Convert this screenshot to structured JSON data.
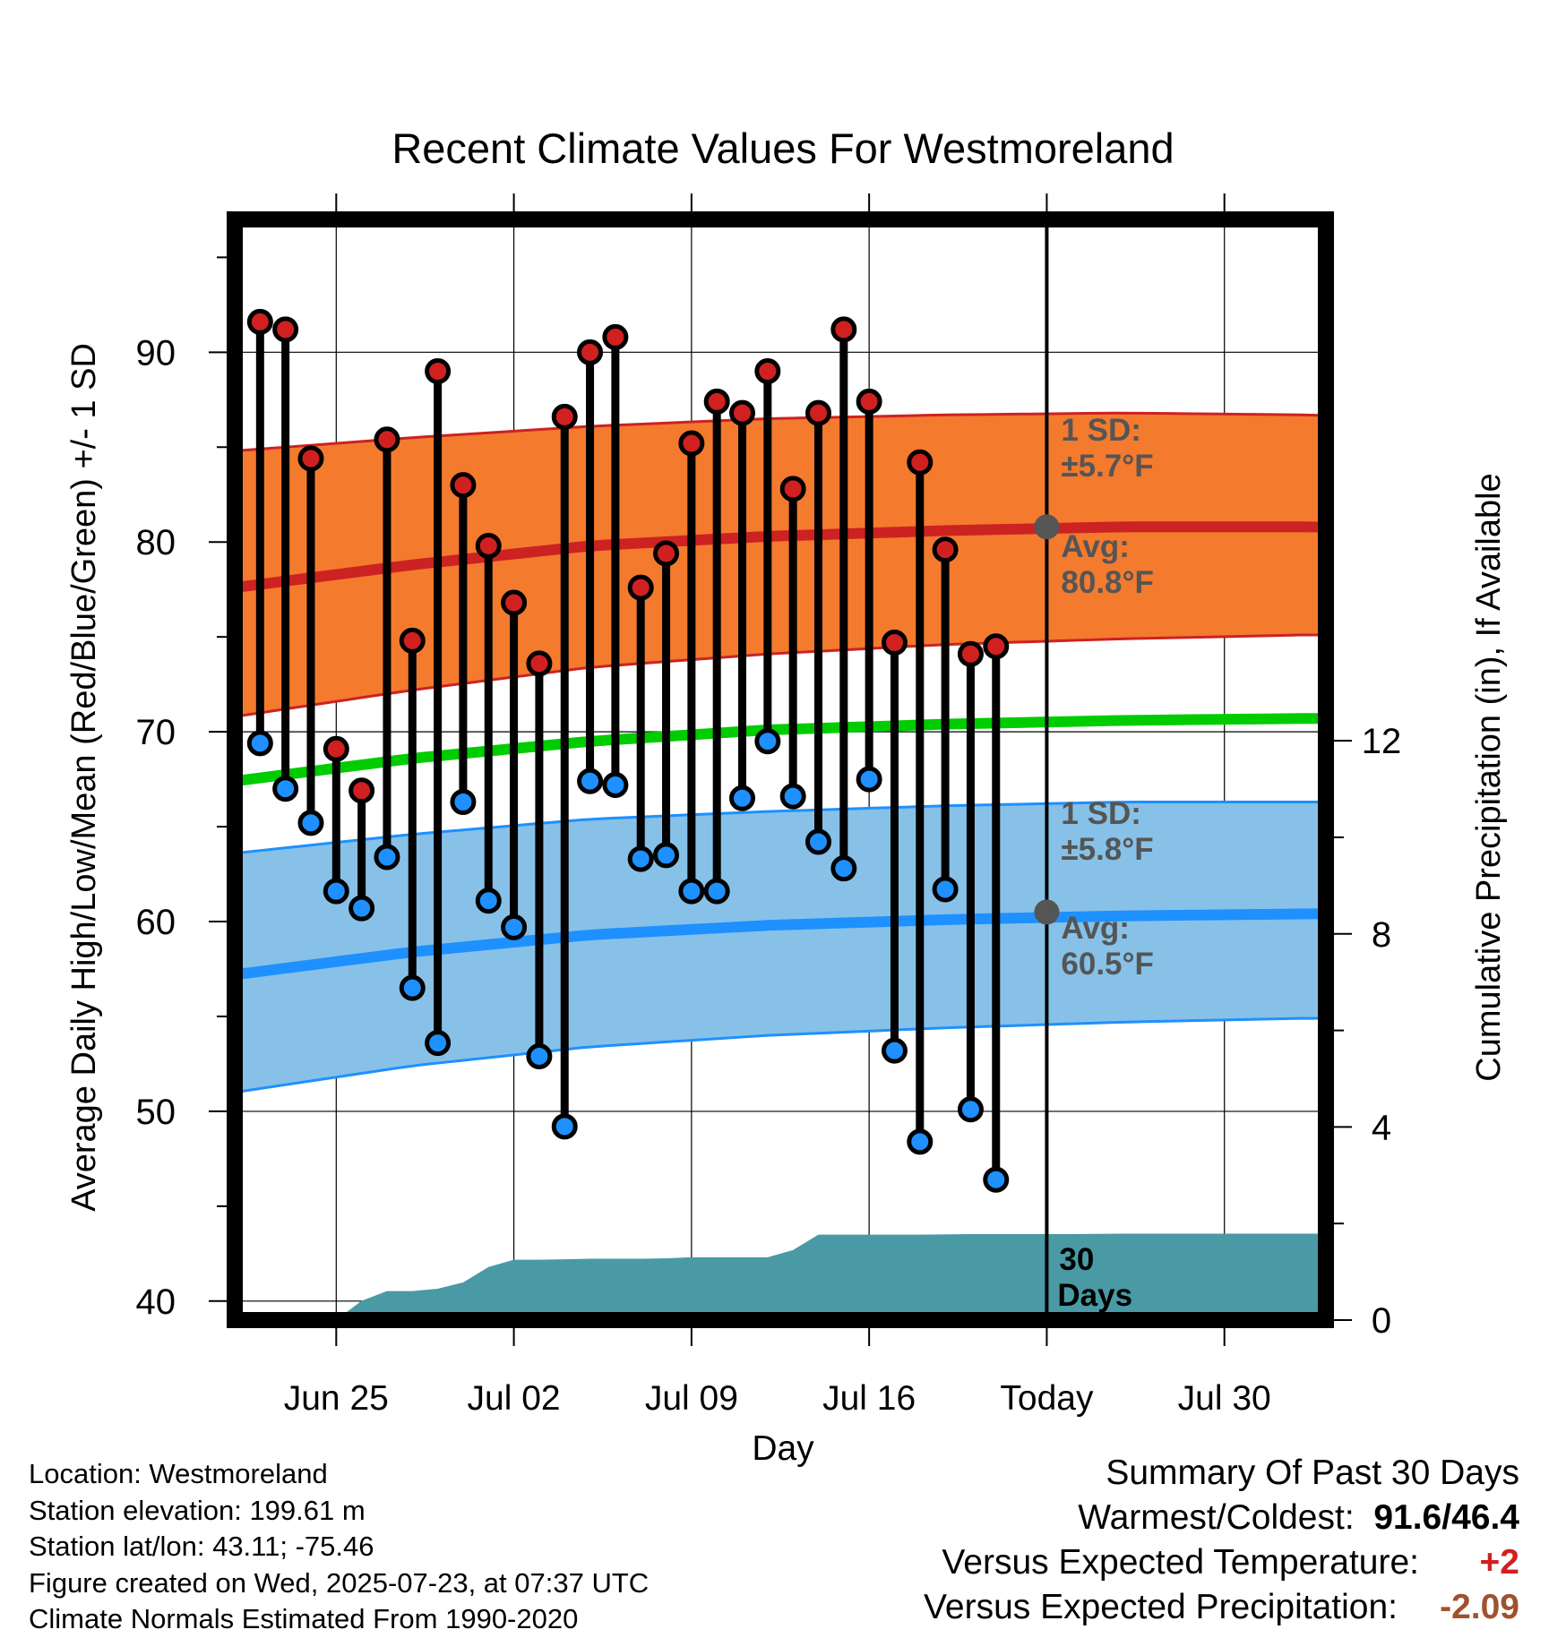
{
  "chart_data": {
    "type": "line",
    "title": "Recent Climate Values For Westmoreland",
    "xlabel": "Day",
    "ylabel": "Average Daily High/Low/Mean (Red/Blue/Green) +/- 1 SD",
    "y2label": "Cumulative Precipitation (in), If Available",
    "xlim": [
      "2025-06-21",
      "2025-08-03"
    ],
    "ylim": [
      39,
      97
    ],
    "y2lim": [
      0,
      22.8
    ],
    "x_ticks": [
      {
        "date": "2025-06-25",
        "label": "Jun 25"
      },
      {
        "date": "2025-07-02",
        "label": "Jul 02"
      },
      {
        "date": "2025-07-09",
        "label": "Jul 09"
      },
      {
        "date": "2025-07-16",
        "label": "Jul 16"
      },
      {
        "date": "2025-07-23",
        "label": "Today"
      },
      {
        "date": "2025-07-30",
        "label": "Jul 30"
      }
    ],
    "y_ticks": [
      40,
      50,
      60,
      70,
      80,
      90
    ],
    "y2_ticks": [
      0,
      4,
      8,
      12
    ],
    "grid": true,
    "today": "2025-07-23",
    "series": [
      {
        "name": "High",
        "color": "#d02020",
        "dates": [
          "2025-06-22",
          "2025-06-23",
          "2025-06-24",
          "2025-06-25",
          "2025-06-26",
          "2025-06-27",
          "2025-06-28",
          "2025-06-29",
          "2025-06-30",
          "2025-07-01",
          "2025-07-02",
          "2025-07-03",
          "2025-07-04",
          "2025-07-05",
          "2025-07-06",
          "2025-07-07",
          "2025-07-08",
          "2025-07-09",
          "2025-07-10",
          "2025-07-11",
          "2025-07-12",
          "2025-07-13",
          "2025-07-14",
          "2025-07-15",
          "2025-07-16",
          "2025-07-17",
          "2025-07-18",
          "2025-07-19",
          "2025-07-20",
          "2025-07-21",
          "2025-07-22"
        ],
        "values": [
          91.6,
          91.2,
          84.4,
          69.1,
          66.9,
          85.4,
          74.8,
          89.0,
          83.0,
          79.8,
          76.8,
          73.6,
          86.6,
          90.0,
          90.8,
          77.6,
          79.4,
          85.2,
          87.4,
          86.8,
          89.0,
          82.8,
          86.8,
          91.2,
          87.4,
          74.7,
          84.2,
          79.6,
          74.1,
          74.5,
          null
        ]
      },
      {
        "name": "Low",
        "color": "#1e90ff",
        "dates": [
          "2025-06-22",
          "2025-06-23",
          "2025-06-24",
          "2025-06-25",
          "2025-06-26",
          "2025-06-27",
          "2025-06-28",
          "2025-06-29",
          "2025-06-30",
          "2025-07-01",
          "2025-07-02",
          "2025-07-03",
          "2025-07-04",
          "2025-07-05",
          "2025-07-06",
          "2025-07-07",
          "2025-07-08",
          "2025-07-09",
          "2025-07-10",
          "2025-07-11",
          "2025-07-12",
          "2025-07-13",
          "2025-07-14",
          "2025-07-15",
          "2025-07-16",
          "2025-07-17",
          "2025-07-18",
          "2025-07-19",
          "2025-07-20",
          "2025-07-21",
          "2025-07-22"
        ],
        "values": [
          69.4,
          67.0,
          65.2,
          61.6,
          60.7,
          63.4,
          56.5,
          53.6,
          66.3,
          61.1,
          59.7,
          52.9,
          49.2,
          67.4,
          67.2,
          63.3,
          63.5,
          61.6,
          61.6,
          66.5,
          69.5,
          66.6,
          64.2,
          62.8,
          67.5,
          53.2,
          48.4,
          61.7,
          50.1,
          46.4,
          null
        ]
      },
      {
        "name": "Normal High",
        "color": "#cc2222",
        "x": [
          21,
          28,
          35,
          42,
          49,
          56,
          63,
          70,
          77,
          84
        ],
        "mean": [
          77.6,
          78.8,
          79.8,
          80.3,
          80.6,
          80.8,
          80.8,
          80.7,
          80.4,
          80.2
        ],
        "upper": [
          84.8,
          85.5,
          86.1,
          86.5,
          86.7,
          86.8,
          86.7,
          86.5,
          86.2,
          85.9
        ],
        "lower": [
          70.8,
          72.2,
          73.4,
          74.1,
          74.6,
          74.9,
          75.1,
          75.1,
          75.0,
          74.8
        ]
      },
      {
        "name": "Normal Low",
        "color": "#1e90ff",
        "x": [
          21,
          28,
          35,
          42,
          49,
          56,
          63,
          70,
          77,
          84
        ],
        "mean": [
          57.2,
          58.4,
          59.3,
          59.8,
          60.1,
          60.3,
          60.4,
          60.5,
          60.4,
          60.3
        ],
        "upper": [
          63.6,
          64.6,
          65.4,
          65.8,
          66.1,
          66.3,
          66.3,
          66.3,
          66.2,
          66.0
        ],
        "lower": [
          51.0,
          52.4,
          53.4,
          54.0,
          54.4,
          54.7,
          54.9,
          54.9,
          54.8,
          54.6
        ]
      },
      {
        "name": "Normal Mean",
        "color": "#00cc00",
        "x": [
          21,
          28,
          35,
          42,
          49,
          56,
          63,
          70,
          77,
          84
        ],
        "mean": [
          67.4,
          68.6,
          69.5,
          70.1,
          70.4,
          70.6,
          70.7,
          70.7,
          70.5,
          70.3
        ]
      },
      {
        "name": "Cumulative Precipitation",
        "color": "#4a9aa5",
        "x": [
          24,
          25,
          26,
          27,
          28,
          29,
          30,
          31,
          32,
          33,
          35,
          37,
          38,
          39,
          40,
          41,
          42,
          43,
          44,
          45,
          46,
          48,
          50,
          52,
          54,
          56,
          84
        ],
        "values": [
          0.0,
          0.0,
          0.4,
          0.6,
          0.6,
          0.65,
          0.78,
          1.1,
          1.25,
          1.25,
          1.27,
          1.27,
          1.28,
          1.3,
          1.3,
          1.3,
          1.3,
          1.45,
          1.77,
          1.77,
          1.77,
          1.77,
          1.78,
          1.78,
          1.78,
          1.79,
          1.79
        ]
      }
    ],
    "annotations": {
      "high_sd_line1": "1 SD:",
      "high_sd_line2": "±5.7°F",
      "high_avg_line1": "Avg:",
      "high_avg_line2": "80.8°F",
      "low_sd_line1": "1 SD:",
      "low_sd_line2": "±5.8°F",
      "low_avg_line1": "Avg:",
      "low_avg_line2": "60.5°F",
      "days_line1": "30",
      "days_line2": "Days",
      "today_high_avg": 80.8,
      "today_low_avg": 60.5
    },
    "colors": {
      "high_band": "#f47a2e",
      "high_line": "#cc2222",
      "low_band": "#87c1e8",
      "low_line": "#1e90ff",
      "mean_line": "#00cc00",
      "precip": "#4a9aa5",
      "annotation": "#555555",
      "today_dot": "#555555",
      "high_dot": "#d02020",
      "low_dot": "#1e90ff"
    }
  },
  "info": {
    "location": "Location: Westmoreland",
    "elevation": "Station elevation: 199.61 m",
    "latlon": "Station lat/lon: 43.11; -75.46",
    "created": "Figure created on Wed, 2025-07-23, at 07:37 UTC",
    "normals": "Climate Normals Estimated From 1990-2020"
  },
  "summary": {
    "title": "Summary Of Past 30 Days",
    "warmest_label": "Warmest/Coldest:",
    "warmest_value": "91.6/46.4",
    "temp_label": "Versus Expected Temperature:",
    "temp_value": "+2",
    "temp_color": "#d02020",
    "precip_label": "Versus Expected Precipitation:",
    "precip_value": "-2.09",
    "precip_color": "#a0522d"
  }
}
